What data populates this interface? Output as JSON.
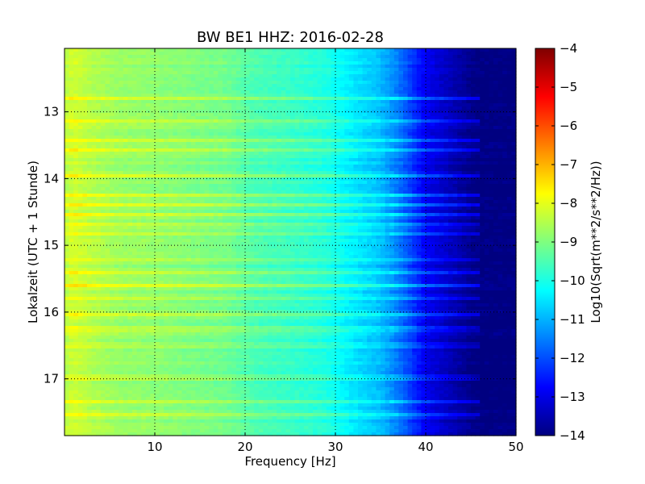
{
  "chart_data": {
    "type": "heatmap",
    "title": "BW BE1 HHZ: 2016-02-28",
    "xlabel": "Frequency [Hz]",
    "ylabel": "Lokalzeit (UTC + 1 Stunde)",
    "xlim": [
      0,
      50
    ],
    "ylim": [
      12.05,
      17.85
    ],
    "y_inverted": true,
    "x_ticks": [
      10,
      20,
      30,
      40,
      50
    ],
    "y_ticks": [
      13,
      14,
      15,
      16,
      17
    ],
    "grid": true,
    "colormap": "jet",
    "colorbar": {
      "label": "Log10(Sqrt(m**2/s**2/Hz))",
      "range": [
        -14,
        -4
      ],
      "ticks": [
        -14,
        -13,
        -12,
        -11,
        -10,
        -9,
        -8,
        -7,
        -6,
        -5,
        -4
      ]
    },
    "spectrum_profile": {
      "frequency_hz": [
        0,
        1,
        3,
        6,
        10,
        14,
        18,
        21,
        25,
        29,
        31,
        33,
        35,
        36.5,
        38,
        40,
        42,
        43.5,
        44.5,
        45.5,
        50
      ],
      "log10_amplitude": [
        -8.5,
        -8.2,
        -8.5,
        -8.75,
        -8.85,
        -9.0,
        -9.15,
        -9.5,
        -9.7,
        -9.95,
        -10.3,
        -10.6,
        -10.9,
        -11.4,
        -12.0,
        -12.9,
        -13.3,
        -13.6,
        -13.8,
        -14.0,
        -14.0
      ]
    },
    "bright_bands_hour": [
      12.8,
      13.15,
      13.42,
      13.58,
      13.95,
      14.25,
      14.4,
      14.55,
      14.7,
      14.82,
      15.2,
      15.4,
      15.6,
      15.78,
      16.05,
      16.25,
      16.5,
      16.98,
      17.35,
      17.55
    ]
  }
}
